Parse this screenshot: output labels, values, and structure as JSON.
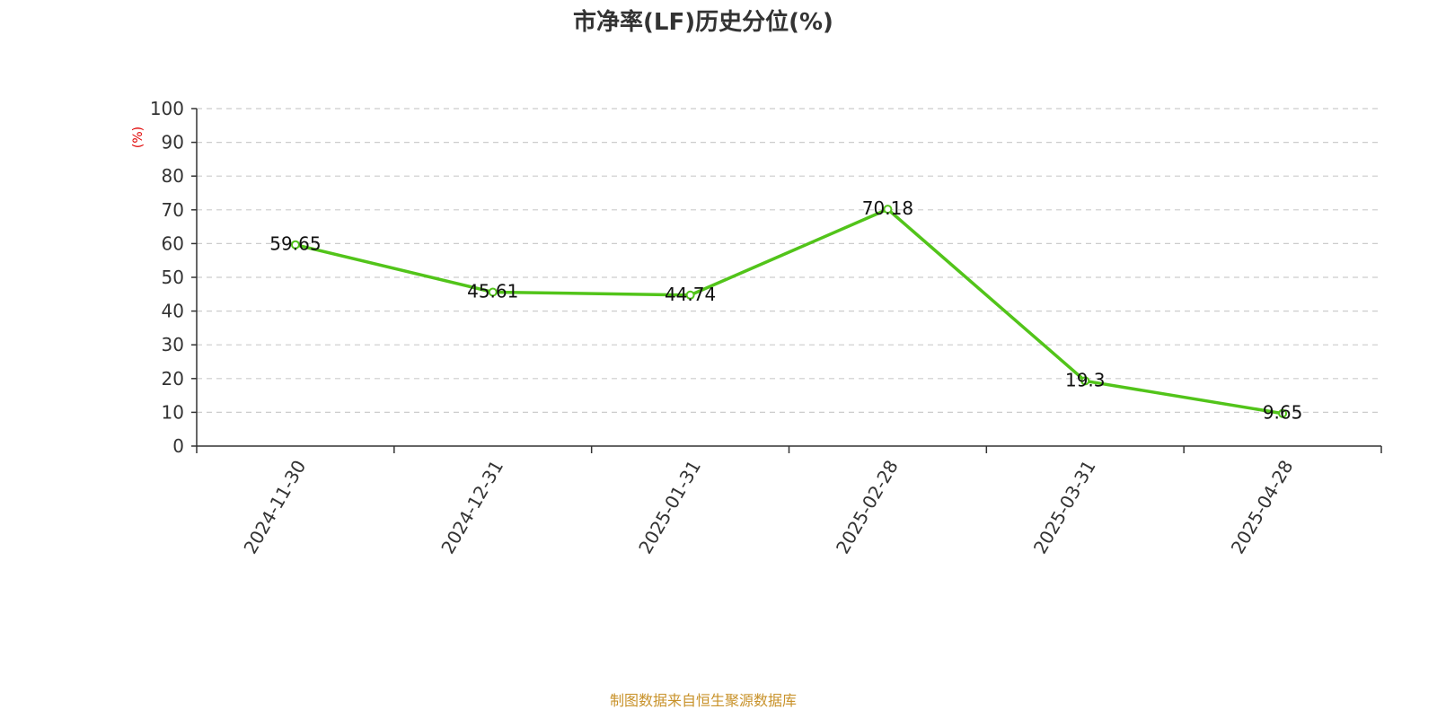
{
  "chart_data": {
    "type": "line",
    "title": "市净率(LF)历史分位(%)",
    "ylabel": "(%)",
    "xlabel": "",
    "categories": [
      "2024-11-30",
      "2024-12-31",
      "2025-01-31",
      "2025-02-28",
      "2025-03-31",
      "2025-04-28"
    ],
    "values": [
      59.65,
      45.61,
      44.74,
      70.18,
      19.3,
      9.65
    ],
    "data_labels": [
      "59.65",
      "45.61",
      "44.74",
      "70.18",
      "19.3",
      "9.65"
    ],
    "y_ticks": [
      "0",
      "10",
      "20",
      "30",
      "40",
      "50",
      "60",
      "70",
      "80",
      "90",
      "100"
    ],
    "ylim": [
      0,
      100
    ],
    "grid": true,
    "legend": "none"
  },
  "footer": "制图数据来自恒生聚源数据库",
  "colors": {
    "line": "#52c41a",
    "grid": "#cccccc",
    "axis": "#333333",
    "unit": "#e00000",
    "footer": "#c8922a"
  }
}
